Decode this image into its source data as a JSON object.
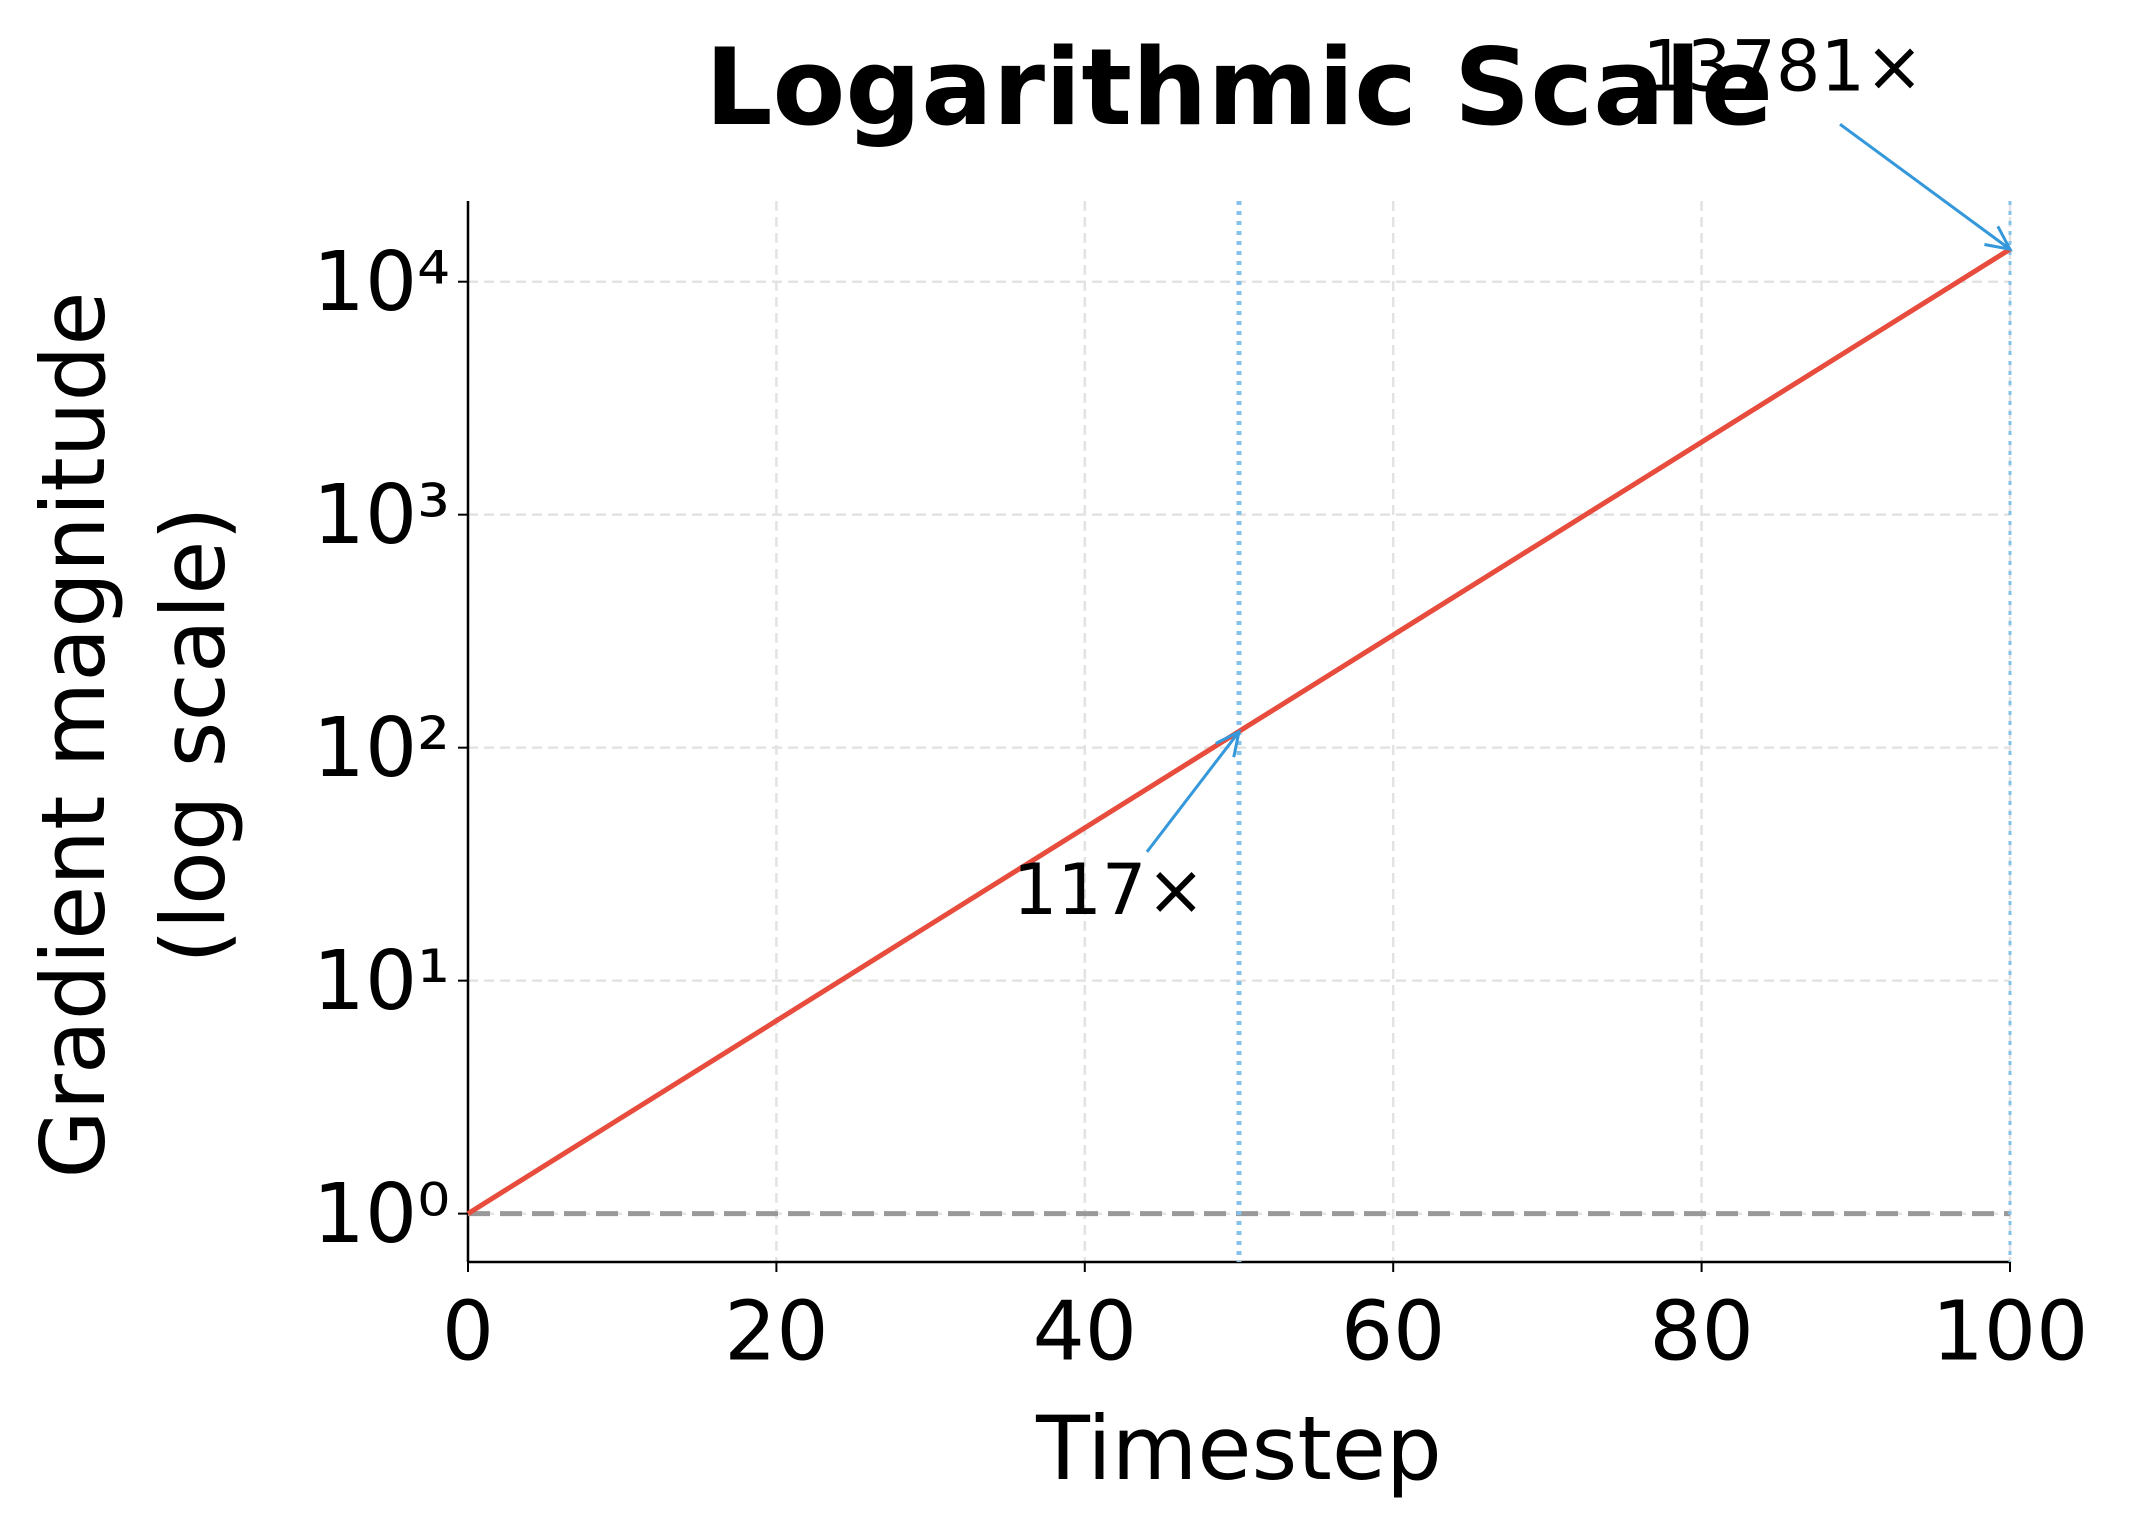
{
  "chart_data": {
    "type": "line",
    "title": "Logarithmic Scale",
    "xlabel": "Timestep",
    "ylabel": [
      "Gradient magnitude",
      "(log scale)"
    ],
    "x": [
      0,
      10,
      20,
      30,
      40,
      50,
      60,
      70,
      80,
      90,
      100
    ],
    "series": [
      {
        "color": "#e74c3c",
        "values": [
          1,
          2.594,
          6.727,
          17.45,
          45.26,
          117.4,
          304.5,
          789.7,
          2048,
          5313,
          13781
        ]
      }
    ],
    "xlim": [
      0,
      100
    ],
    "xticks": [
      0,
      20,
      40,
      60,
      80,
      100
    ],
    "ylim": [
      0.62,
      22200
    ],
    "log_y": true,
    "yticks": [
      {
        "value": 1,
        "label": "10⁰"
      },
      {
        "value": 10,
        "label": "10¹"
      },
      {
        "value": 100,
        "label": "10²"
      },
      {
        "value": 1000,
        "label": "10³"
      },
      {
        "value": 10000,
        "label": "10⁴"
      }
    ],
    "grid": true,
    "reference_line": {
      "y": 1,
      "color": "#999999"
    },
    "vlines": [
      {
        "x": 50,
        "color": "#85c1e9"
      },
      {
        "x": 100,
        "color": "#85c1e9"
      }
    ],
    "annotations": [
      {
        "text": "117×",
        "x": 50,
        "y": 117,
        "color": "#3498db"
      },
      {
        "text": "13781×",
        "x": 100,
        "y": 13781,
        "color": "#3498db"
      }
    ]
  }
}
